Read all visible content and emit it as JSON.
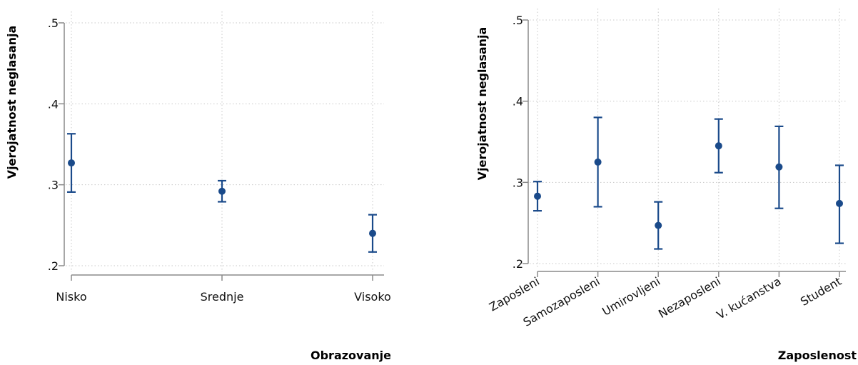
{
  "chart_data": [
    {
      "type": "scatter",
      "ylabel": "Vjerojatnost neglasanja",
      "xlabel": "Obrazovanje",
      "yticks": [
        0.2,
        0.3,
        0.4,
        0.5
      ],
      "ytick_labels": [
        ".2",
        ".3",
        ".4",
        ".5"
      ],
      "ylim": [
        0.2,
        0.5
      ],
      "grid": true,
      "categories": [
        "Nisko",
        "Srednje",
        "Visoko"
      ],
      "values": [
        0.327,
        0.292,
        0.24
      ],
      "ci_low": [
        0.291,
        0.279,
        0.217
      ],
      "ci_high": [
        0.363,
        0.305,
        0.263
      ],
      "color": "#1a4a8a",
      "xtick_rotation": 0
    },
    {
      "type": "scatter",
      "ylabel": "Vjerojatnost neglasanja",
      "xlabel": "Zaposlenost",
      "yticks": [
        0.2,
        0.3,
        0.4,
        0.5
      ],
      "ytick_labels": [
        ".2",
        ".3",
        ".4",
        ".5"
      ],
      "ylim": [
        0.2,
        0.5
      ],
      "grid": true,
      "categories": [
        "Zaposleni",
        "Samozaposleni",
        "Umirovljeni",
        "Nezaposleni",
        "V. kućanstva",
        "Student"
      ],
      "values": [
        0.283,
        0.325,
        0.247,
        0.345,
        0.319,
        0.274
      ],
      "ci_low": [
        0.265,
        0.27,
        0.218,
        0.312,
        0.268,
        0.225
      ],
      "ci_high": [
        0.301,
        0.38,
        0.276,
        0.378,
        0.369,
        0.321
      ],
      "color": "#1a4a8a",
      "xtick_rotation": -30
    }
  ]
}
